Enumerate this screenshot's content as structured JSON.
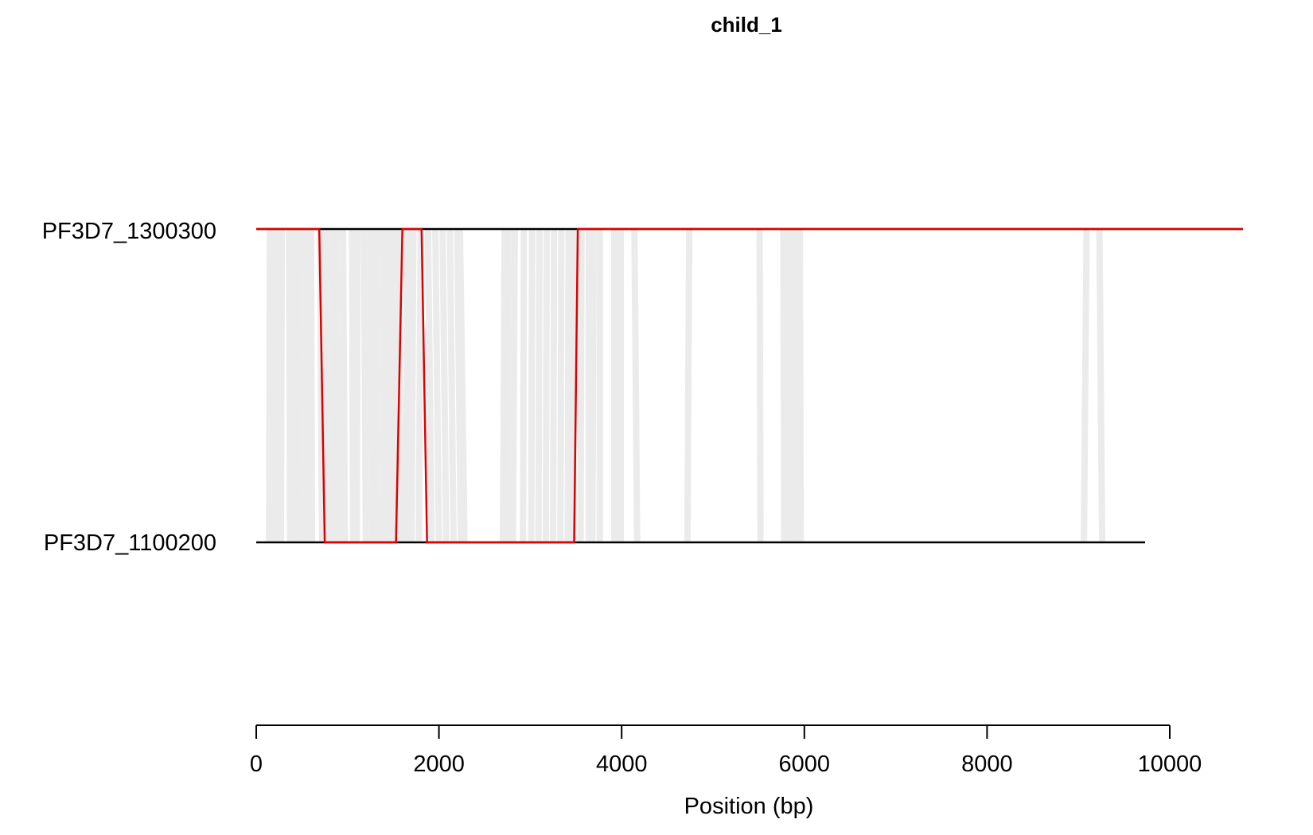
{
  "chart_data": {
    "type": "line",
    "title": "child_1",
    "xlabel": "Position (bp)",
    "ylabel": "",
    "xlim": [
      0,
      10800
    ],
    "x_ticks": [
      0,
      2000,
      4000,
      6000,
      8000,
      10000
    ],
    "x_tick_labels": [
      "0",
      "2000",
      "4000",
      "6000",
      "8000",
      "10000"
    ],
    "grid": false,
    "tracks": [
      {
        "name": "PF3D7_1300300",
        "length": 10800
      },
      {
        "name": "PF3D7_1100200",
        "length": 9730
      }
    ],
    "alignment_links": [
      [
        150,
        140
      ],
      [
        170,
        160
      ],
      [
        230,
        230
      ],
      [
        280,
        270
      ],
      [
        360,
        370
      ],
      [
        420,
        430
      ],
      [
        470,
        480
      ],
      [
        540,
        550
      ],
      [
        600,
        610
      ],
      [
        700,
        720
      ],
      [
        760,
        780
      ],
      [
        830,
        850
      ],
      [
        880,
        900
      ],
      [
        950,
        970
      ],
      [
        1050,
        1060
      ],
      [
        1110,
        1100
      ],
      [
        1180,
        1200
      ],
      [
        1250,
        1270
      ],
      [
        1310,
        1330
      ],
      [
        1380,
        1400
      ],
      [
        1440,
        1460
      ],
      [
        1500,
        1520
      ],
      [
        1560,
        1580
      ],
      [
        1650,
        1640
      ],
      [
        1720,
        1700
      ],
      [
        1800,
        1780
      ],
      [
        1880,
        1920
      ],
      [
        1960,
        2000
      ],
      [
        2040,
        2080
      ],
      [
        2120,
        2160
      ],
      [
        2200,
        2240
      ],
      [
        2230,
        2280
      ],
      [
        2720,
        2700
      ],
      [
        2760,
        2740
      ],
      [
        2830,
        2810
      ],
      [
        2930,
        2920
      ],
      [
        3020,
        3010
      ],
      [
        3100,
        3090
      ],
      [
        3180,
        3170
      ],
      [
        3260,
        3250
      ],
      [
        3340,
        3330
      ],
      [
        3420,
        3410
      ],
      [
        3480,
        3470
      ],
      [
        3560,
        3550
      ],
      [
        3640,
        3640
      ],
      [
        3690,
        3680
      ],
      [
        3760,
        3760
      ],
      [
        3920,
        3920
      ],
      [
        3990,
        3990
      ],
      [
        4140,
        4170
      ],
      [
        4740,
        4720
      ],
      [
        5510,
        5520
      ],
      [
        5770,
        5780
      ],
      [
        5820,
        5830
      ],
      [
        5880,
        5890
      ],
      [
        5950,
        5960
      ],
      [
        9090,
        9060
      ],
      [
        9230,
        9260
      ]
    ],
    "series": [
      {
        "name": "",
        "color": "#dd0000",
        "points": [
          {
            "x": 0,
            "track": "PF3D7_1300300"
          },
          {
            "x": 690,
            "track": "PF3D7_1300300"
          },
          {
            "x": 750,
            "track": "PF3D7_1100200"
          },
          {
            "x": 1530,
            "track": "PF3D7_1100200"
          },
          {
            "x": 1600,
            "track": "PF3D7_1300300"
          },
          {
            "x": 1810,
            "track": "PF3D7_1300300"
          },
          {
            "x": 1870,
            "track": "PF3D7_1100200"
          },
          {
            "x": 3480,
            "track": "PF3D7_1100200"
          },
          {
            "x": 3520,
            "track": "PF3D7_1300300"
          },
          {
            "x": 10800,
            "track": "PF3D7_1300300"
          }
        ]
      }
    ],
    "colors": {
      "link": "#ebebeb",
      "track": "#000000",
      "path": "#dd0000",
      "axis": "#000000"
    }
  }
}
